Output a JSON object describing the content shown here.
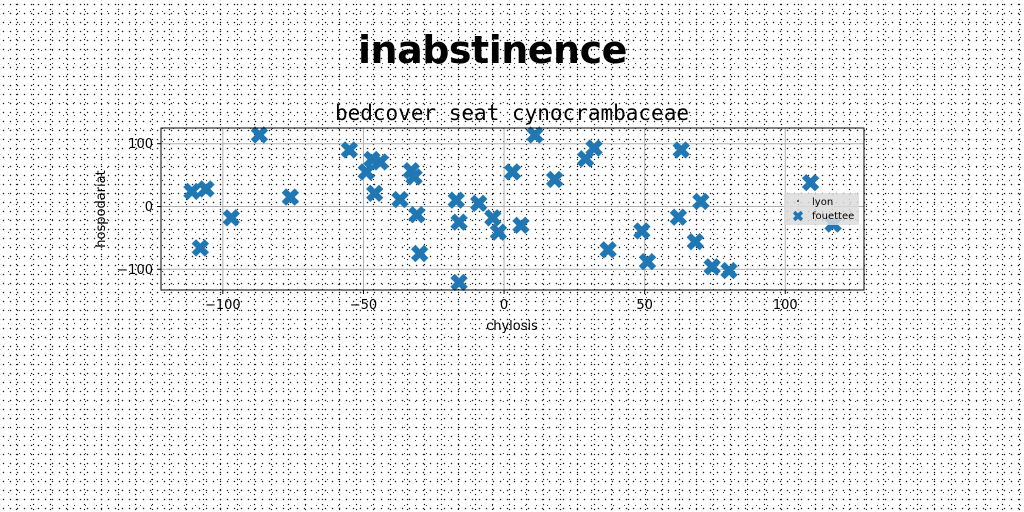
{
  "heading": "inabstinence",
  "chart_data": {
    "type": "scatter",
    "title": "bedcover seat cynocrambaceae",
    "xlabel": "chylosis",
    "ylabel": "hospodariat",
    "xlim": [
      -122,
      128
    ],
    "ylim": [
      -133,
      125
    ],
    "xticks": [
      -100,
      -50,
      0,
      50,
      100
    ],
    "yticks": [
      -100,
      0,
      100
    ],
    "grid": true,
    "legend_position": "right",
    "series": [
      {
        "name": "lyon",
        "marker": "point",
        "color": "#000000",
        "x": [],
        "y": []
      },
      {
        "name": "fouettee",
        "marker": "X",
        "color": "#1f77b4",
        "x": [
          -111,
          -108,
          -106,
          -97,
          -87,
          -76,
          -55,
          -49,
          -47,
          -46,
          -44,
          -37,
          -33,
          -32,
          -31,
          -30,
          -17,
          -16,
          -16,
          -9,
          -4,
          -2,
          3,
          6,
          11,
          18,
          29,
          32,
          37,
          49,
          51,
          62,
          63,
          68,
          70,
          74,
          80,
          109,
          117
        ],
        "y": [
          24,
          -66,
          28,
          -18,
          114,
          15,
          90,
          55,
          75,
          21,
          71,
          11,
          57,
          47,
          -13,
          -75,
          10,
          -25,
          -121,
          5,
          -18,
          -41,
          55,
          -30,
          114,
          43,
          76,
          93,
          -69,
          -39,
          -88,
          -17,
          90,
          -56,
          8,
          -96,
          -102,
          38,
          -28
        ]
      }
    ]
  }
}
